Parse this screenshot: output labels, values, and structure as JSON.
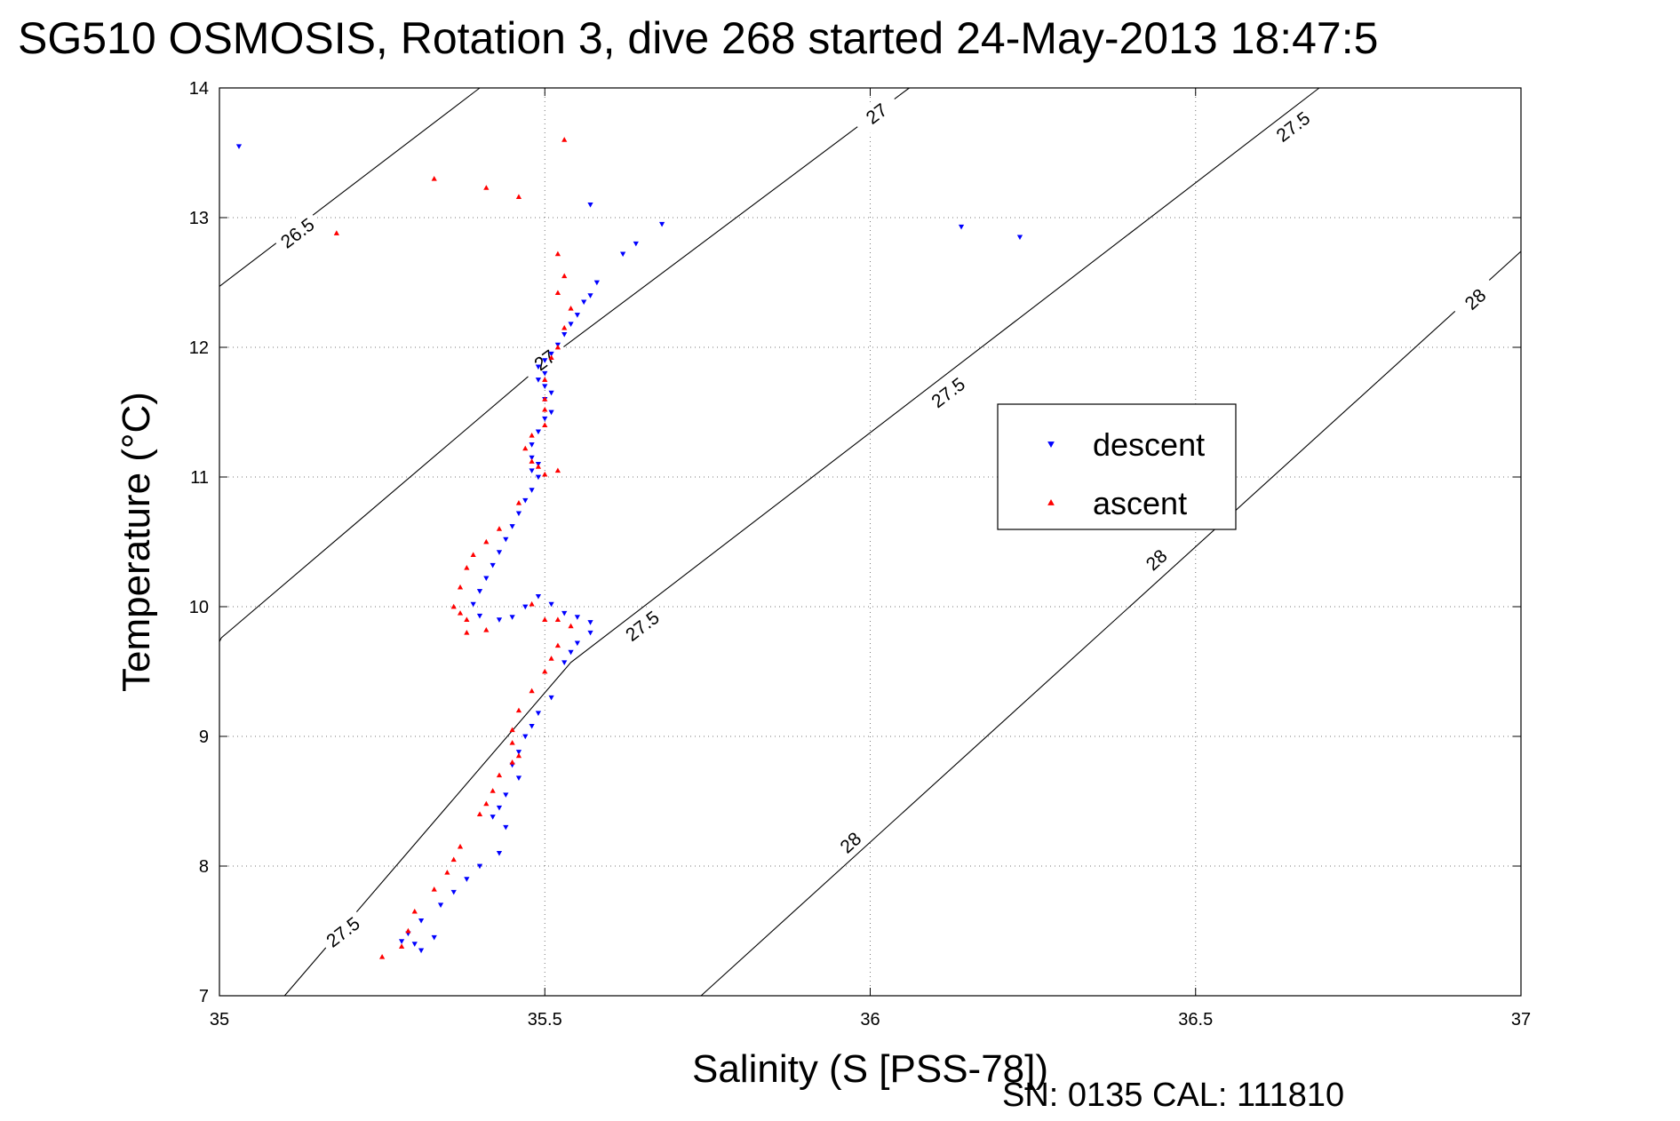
{
  "title": "SG510 OSMOSIS, Rotation 3, dive 268 started 24-May-2013 18:47:5",
  "footer": "SN: 0135  CAL: 111810",
  "chart_data": {
    "type": "scatter",
    "title": "SG510 OSMOSIS, Rotation 3, dive 268 started 24-May-2013 18:47:5",
    "xlabel": "Salinity (S [PSS-78])",
    "ylabel": "Temperature (°C)",
    "xlim": [
      35,
      37
    ],
    "ylim": [
      7,
      14
    ],
    "xticks": [
      "35",
      "35.5",
      "36",
      "36.5",
      "37"
    ],
    "yticks": [
      "7",
      "8",
      "9",
      "10",
      "11",
      "12",
      "13",
      "14"
    ],
    "grid": true,
    "legend_position": "right-center",
    "colors": {
      "descent": "#0000ff",
      "ascent": "#ff0000",
      "contour": "#000000"
    },
    "contours": [
      {
        "sigma": "26.5",
        "segments": [
          [
            [
              35.0,
              12.47
            ],
            [
              35.4,
              14.0
            ]
          ]
        ],
        "labels": [
          [
            35.12,
            12.88
          ]
        ]
      },
      {
        "sigma": "27",
        "segments": [
          [
            [
              35.0,
              9.73
            ],
            [
              35.003,
              9.76
            ],
            [
              35.52,
              11.97
            ],
            [
              36.06,
              14.0
            ]
          ]
        ],
        "labels": [
          [
            35.5,
            11.9
          ],
          [
            36.01,
            13.8
          ]
        ]
      },
      {
        "sigma": "27.5",
        "segments": [
          [
            [
              35.1,
              7.0
            ],
            [
              35.54,
              9.57
            ],
            [
              36.69,
              14.0
            ]
          ]
        ],
        "labels": [
          [
            35.19,
            7.49
          ],
          [
            35.65,
            9.85
          ],
          [
            36.12,
            11.65
          ],
          [
            36.65,
            13.7
          ]
        ]
      },
      {
        "sigma": "28",
        "segments": [
          [
            [
              35.74,
              7.0
            ],
            [
              37.0,
              12.74
            ]
          ]
        ],
        "labels": [
          [
            35.97,
            8.18
          ],
          [
            36.44,
            10.36
          ],
          [
            36.93,
            12.37
          ]
        ]
      }
    ],
    "series": [
      {
        "name": "descent",
        "marker": "triangle-down",
        "points": [
          [
            35.03,
            13.55
          ],
          [
            35.57,
            13.1
          ],
          [
            35.68,
            12.95
          ],
          [
            35.64,
            12.8
          ],
          [
            35.62,
            12.72
          ],
          [
            35.58,
            12.5
          ],
          [
            35.57,
            12.4
          ],
          [
            35.56,
            12.35
          ],
          [
            35.55,
            12.25
          ],
          [
            35.54,
            12.18
          ],
          [
            35.53,
            12.1
          ],
          [
            35.52,
            12.02
          ],
          [
            35.51,
            11.95
          ],
          [
            35.5,
            11.9
          ],
          [
            35.49,
            11.85
          ],
          [
            35.5,
            11.8
          ],
          [
            35.49,
            11.75
          ],
          [
            35.5,
            11.7
          ],
          [
            35.51,
            11.65
          ],
          [
            35.5,
            11.6
          ],
          [
            35.51,
            11.5
          ],
          [
            35.5,
            11.45
          ],
          [
            35.49,
            11.35
          ],
          [
            35.48,
            11.25
          ],
          [
            35.48,
            11.15
          ],
          [
            35.49,
            11.1
          ],
          [
            35.48,
            11.05
          ],
          [
            35.49,
            11.0
          ],
          [
            35.48,
            10.9
          ],
          [
            35.47,
            10.82
          ],
          [
            35.46,
            10.72
          ],
          [
            35.45,
            10.62
          ],
          [
            35.44,
            10.52
          ],
          [
            35.43,
            10.42
          ],
          [
            35.42,
            10.32
          ],
          [
            35.41,
            10.22
          ],
          [
            35.4,
            10.12
          ],
          [
            35.39,
            10.02
          ],
          [
            35.4,
            9.93
          ],
          [
            35.43,
            9.9
          ],
          [
            35.45,
            9.92
          ],
          [
            35.47,
            10.0
          ],
          [
            35.49,
            10.08
          ],
          [
            35.51,
            10.02
          ],
          [
            35.53,
            9.95
          ],
          [
            35.55,
            9.92
          ],
          [
            35.57,
            9.88
          ],
          [
            35.57,
            9.8
          ],
          [
            35.55,
            9.72
          ],
          [
            35.54,
            9.65
          ],
          [
            35.53,
            9.57
          ],
          [
            35.51,
            9.3
          ],
          [
            35.49,
            9.18
          ],
          [
            35.48,
            9.08
          ],
          [
            35.47,
            9.0
          ],
          [
            35.46,
            8.88
          ],
          [
            35.45,
            8.78
          ],
          [
            35.46,
            8.68
          ],
          [
            35.44,
            8.55
          ],
          [
            35.43,
            8.45
          ],
          [
            35.42,
            8.38
          ],
          [
            35.44,
            8.3
          ],
          [
            35.43,
            8.1
          ],
          [
            35.4,
            8.0
          ],
          [
            35.38,
            7.9
          ],
          [
            35.36,
            7.8
          ],
          [
            35.34,
            7.7
          ],
          [
            35.31,
            7.58
          ],
          [
            35.29,
            7.48
          ],
          [
            35.28,
            7.42
          ],
          [
            35.3,
            7.4
          ],
          [
            35.31,
            7.35
          ],
          [
            35.33,
            7.45
          ],
          [
            36.14,
            12.93
          ],
          [
            36.23,
            12.85
          ]
        ]
      },
      {
        "name": "ascent",
        "marker": "triangle-up",
        "points": [
          [
            35.53,
            13.6
          ],
          [
            35.33,
            13.3
          ],
          [
            35.41,
            13.23
          ],
          [
            35.46,
            13.16
          ],
          [
            35.18,
            12.88
          ],
          [
            35.52,
            12.72
          ],
          [
            35.53,
            12.55
          ],
          [
            35.52,
            12.42
          ],
          [
            35.54,
            12.3
          ],
          [
            35.53,
            12.15
          ],
          [
            35.52,
            12.0
          ],
          [
            35.51,
            11.92
          ],
          [
            35.5,
            11.75
          ],
          [
            35.5,
            11.6
          ],
          [
            35.5,
            11.52
          ],
          [
            35.5,
            11.4
          ],
          [
            35.48,
            11.32
          ],
          [
            35.47,
            11.22
          ],
          [
            35.48,
            11.12
          ],
          [
            35.49,
            11.08
          ],
          [
            35.5,
            11.02
          ],
          [
            35.52,
            11.05
          ],
          [
            35.46,
            10.8
          ],
          [
            35.43,
            10.6
          ],
          [
            35.41,
            10.5
          ],
          [
            35.39,
            10.4
          ],
          [
            35.38,
            10.3
          ],
          [
            35.37,
            10.15
          ],
          [
            35.36,
            10.0
          ],
          [
            35.37,
            9.95
          ],
          [
            35.38,
            9.9
          ],
          [
            35.38,
            9.8
          ],
          [
            35.41,
            9.82
          ],
          [
            35.48,
            10.02
          ],
          [
            35.5,
            9.9
          ],
          [
            35.52,
            9.9
          ],
          [
            35.54,
            9.85
          ],
          [
            35.52,
            9.7
          ],
          [
            35.51,
            9.6
          ],
          [
            35.5,
            9.5
          ],
          [
            35.48,
            9.35
          ],
          [
            35.46,
            9.2
          ],
          [
            35.45,
            9.05
          ],
          [
            35.45,
            8.95
          ],
          [
            35.46,
            8.85
          ],
          [
            35.45,
            8.8
          ],
          [
            35.43,
            8.7
          ],
          [
            35.42,
            8.58
          ],
          [
            35.41,
            8.48
          ],
          [
            35.4,
            8.4
          ],
          [
            35.37,
            8.15
          ],
          [
            35.36,
            8.05
          ],
          [
            35.35,
            7.95
          ],
          [
            35.33,
            7.82
          ],
          [
            35.3,
            7.65
          ],
          [
            35.29,
            7.5
          ],
          [
            35.28,
            7.38
          ],
          [
            35.25,
            7.3
          ]
        ]
      }
    ]
  }
}
